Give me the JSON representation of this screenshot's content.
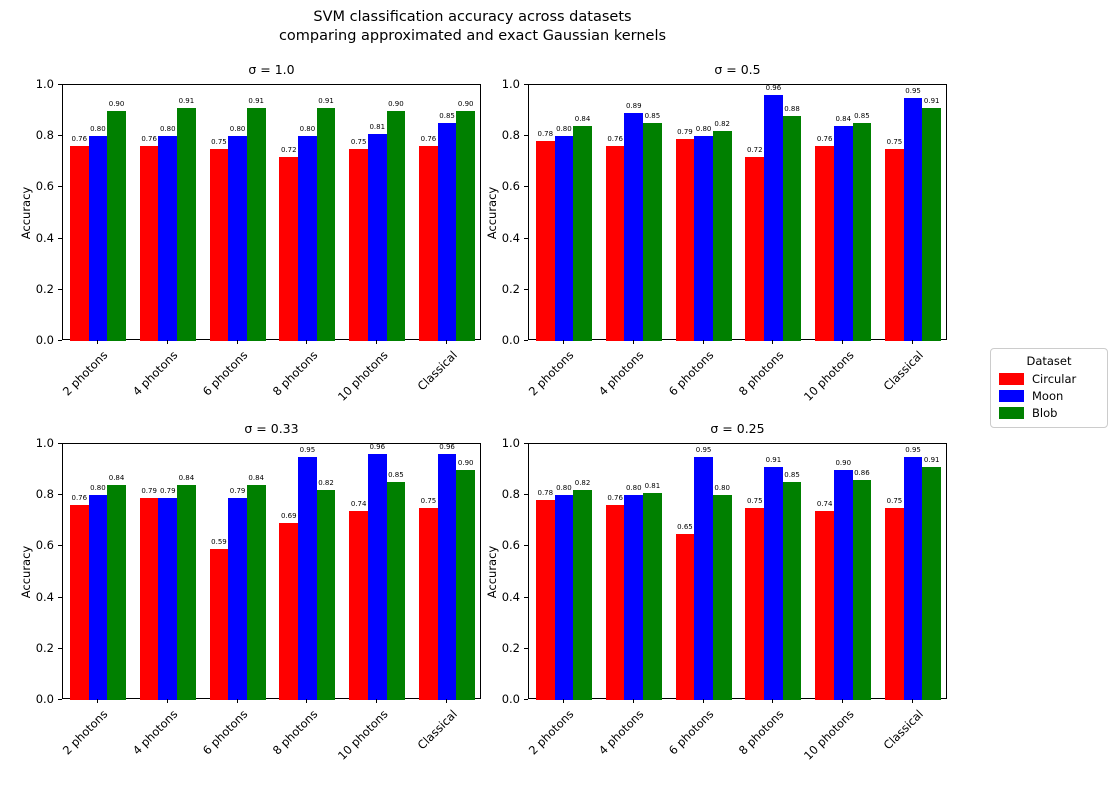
{
  "figure": {
    "title_line1": "SVM classification accuracy across datasets",
    "title_line2": "comparing approximated and exact Gaussian kernels"
  },
  "axes": {
    "ylabel": "Accuracy",
    "yticks": [
      "0.0",
      "0.2",
      "0.4",
      "0.6",
      "0.8",
      "1.0"
    ],
    "ylim": [
      0,
      1
    ]
  },
  "legend": {
    "title": "Dataset",
    "entries": [
      {
        "label": "Circular",
        "color": "#ff0000"
      },
      {
        "label": "Moon",
        "color": "#0000ff"
      },
      {
        "label": "Blob",
        "color": "#008000"
      }
    ]
  },
  "chart_data": [
    {
      "type": "bar",
      "title": "σ = 1.0",
      "xlabel": "",
      "ylabel": "Accuracy",
      "ylim": [
        0,
        1
      ],
      "grid": false,
      "categories": [
        "2 photons",
        "4 photons",
        "6 photons",
        "8 photons",
        "10 photons",
        "Classical"
      ],
      "series": [
        {
          "name": "Circular",
          "color": "#ff0000",
          "values": [
            0.76,
            0.76,
            0.75,
            0.72,
            0.75,
            0.76
          ]
        },
        {
          "name": "Moon",
          "color": "#0000ff",
          "values": [
            0.8,
            0.8,
            0.8,
            0.8,
            0.81,
            0.85
          ]
        },
        {
          "name": "Blob",
          "color": "#008000",
          "values": [
            0.9,
            0.91,
            0.91,
            0.91,
            0.9,
            0.9
          ]
        }
      ]
    },
    {
      "type": "bar",
      "title": "σ = 0.5",
      "xlabel": "",
      "ylabel": "Accuracy",
      "ylim": [
        0,
        1
      ],
      "grid": false,
      "categories": [
        "2 photons",
        "4 photons",
        "6 photons",
        "8 photons",
        "10 photons",
        "Classical"
      ],
      "series": [
        {
          "name": "Circular",
          "color": "#ff0000",
          "values": [
            0.78,
            0.76,
            0.79,
            0.72,
            0.76,
            0.75
          ]
        },
        {
          "name": "Moon",
          "color": "#0000ff",
          "values": [
            0.8,
            0.89,
            0.8,
            0.96,
            0.84,
            0.95
          ]
        },
        {
          "name": "Blob",
          "color": "#008000",
          "values": [
            0.84,
            0.85,
            0.82,
            0.88,
            0.85,
            0.91
          ]
        }
      ]
    },
    {
      "type": "bar",
      "title": "σ = 0.33",
      "xlabel": "",
      "ylabel": "Accuracy",
      "ylim": [
        0,
        1
      ],
      "grid": false,
      "categories": [
        "2 photons",
        "4 photons",
        "6 photons",
        "8 photons",
        "10 photons",
        "Classical"
      ],
      "series": [
        {
          "name": "Circular",
          "color": "#ff0000",
          "values": [
            0.76,
            0.79,
            0.59,
            0.69,
            0.74,
            0.75
          ]
        },
        {
          "name": "Moon",
          "color": "#0000ff",
          "values": [
            0.8,
            0.79,
            0.79,
            0.95,
            0.96,
            0.96
          ]
        },
        {
          "name": "Blob",
          "color": "#008000",
          "values": [
            0.84,
            0.84,
            0.84,
            0.82,
            0.85,
            0.9
          ]
        }
      ]
    },
    {
      "type": "bar",
      "title": "σ = 0.25",
      "xlabel": "",
      "ylabel": "Accuracy",
      "ylim": [
        0,
        1
      ],
      "grid": false,
      "categories": [
        "2 photons",
        "4 photons",
        "6 photons",
        "8 photons",
        "10 photons",
        "Classical"
      ],
      "series": [
        {
          "name": "Circular",
          "color": "#ff0000",
          "values": [
            0.78,
            0.76,
            0.65,
            0.75,
            0.74,
            0.75
          ]
        },
        {
          "name": "Moon",
          "color": "#0000ff",
          "values": [
            0.8,
            0.8,
            0.95,
            0.91,
            0.9,
            0.95
          ]
        },
        {
          "name": "Blob",
          "color": "#008000",
          "values": [
            0.82,
            0.81,
            0.8,
            0.85,
            0.86,
            0.91
          ]
        }
      ]
    }
  ]
}
